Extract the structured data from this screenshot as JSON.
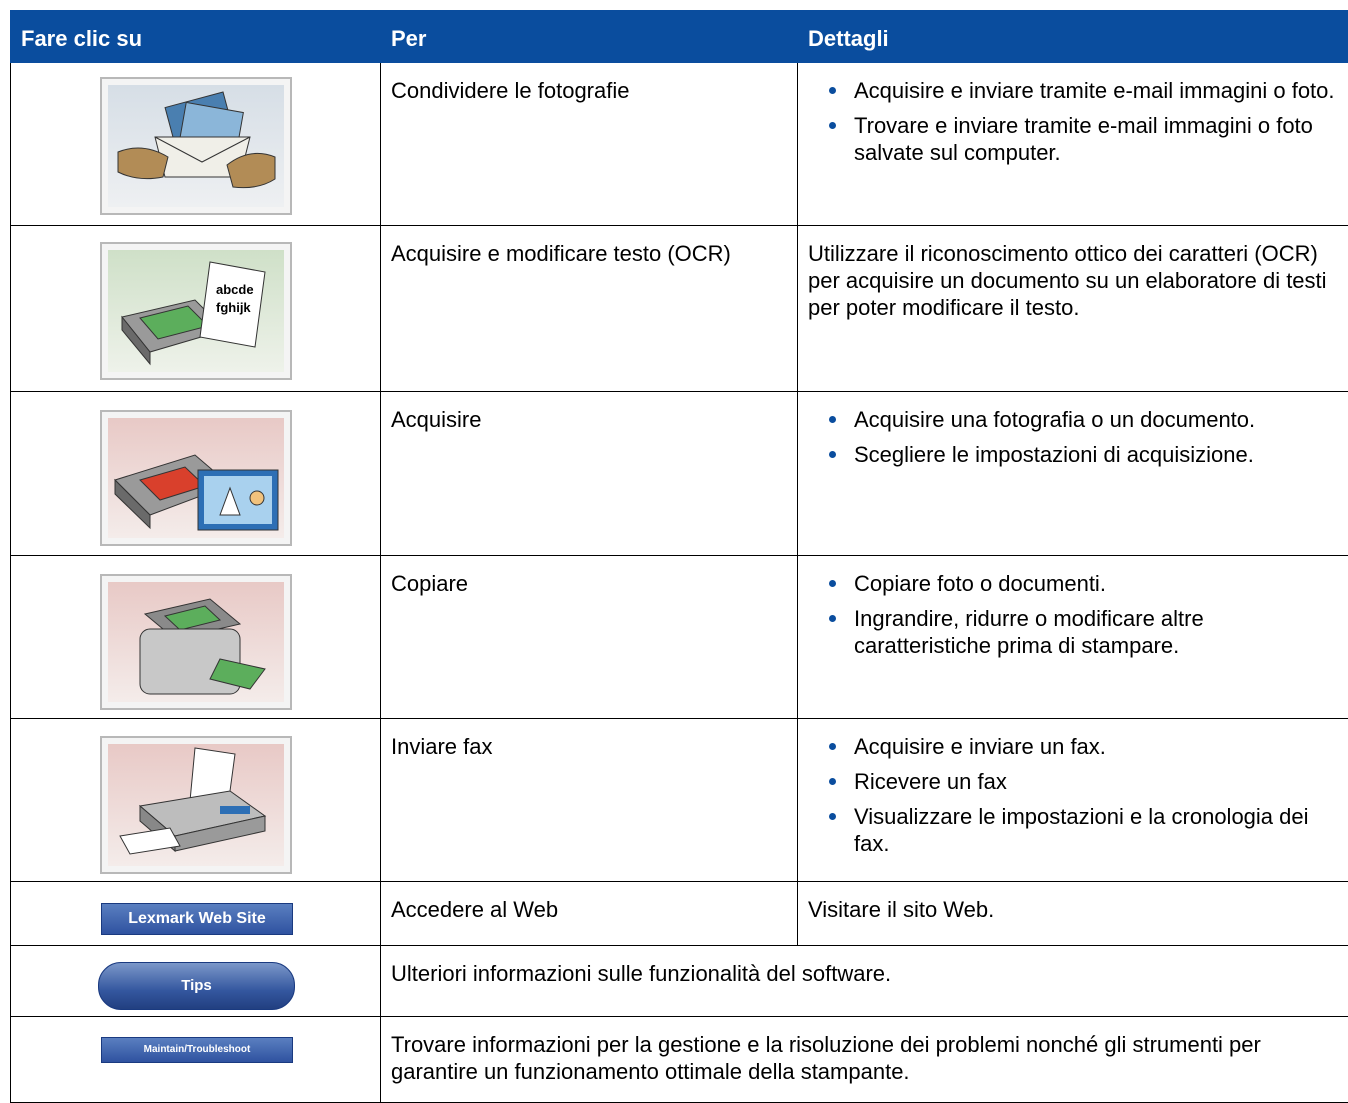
{
  "table": {
    "header": [
      "Fare clic su",
      "Per",
      "Dettagli"
    ],
    "rows": [
      {
        "action": "Condividere le fotografie",
        "details": [
          "Acquisire e inviare tramite e-mail immagini o foto.",
          "Trovare e inviare tramite e-mail immagini o foto salvate sul computer."
        ]
      },
      {
        "icon_text": [
          "abcde",
          "fghijk"
        ],
        "action": "Acquisire e modificare testo (OCR)",
        "details": "Utilizzare il riconoscimento ottico dei caratteri (OCR) per acquisire un documento su un elaboratore di testi per poter modificare il testo."
      },
      {
        "action": "Acquisire",
        "details": [
          "Acquisire una fotografia o un documento.",
          "Scegliere le impostazioni di acquisizione."
        ]
      },
      {
        "action": "Copiare",
        "details": [
          "Copiare foto o documenti.",
          "Ingrandire, ridurre o modificare altre caratteristiche prima di stampare."
        ]
      },
      {
        "action": "Inviare fax",
        "details": [
          "Acquisire e inviare un fax.",
          "Ricevere un fax",
          "Visualizzare le impostazioni e la cronologia dei fax."
        ]
      },
      {
        "button": "Lexmark Web Site",
        "action": "Accedere al Web",
        "details": "Visitare il sito Web."
      },
      {
        "button": "Tips",
        "description": "Ulteriori informazioni sulle funzionalità del software."
      },
      {
        "button": "Maintain/Troubleshoot",
        "description": "Trovare informazioni per la gestione e la risoluzione dei problemi nonché gli strumenti per garantire un funzionamento ottimale della stampante."
      }
    ]
  }
}
